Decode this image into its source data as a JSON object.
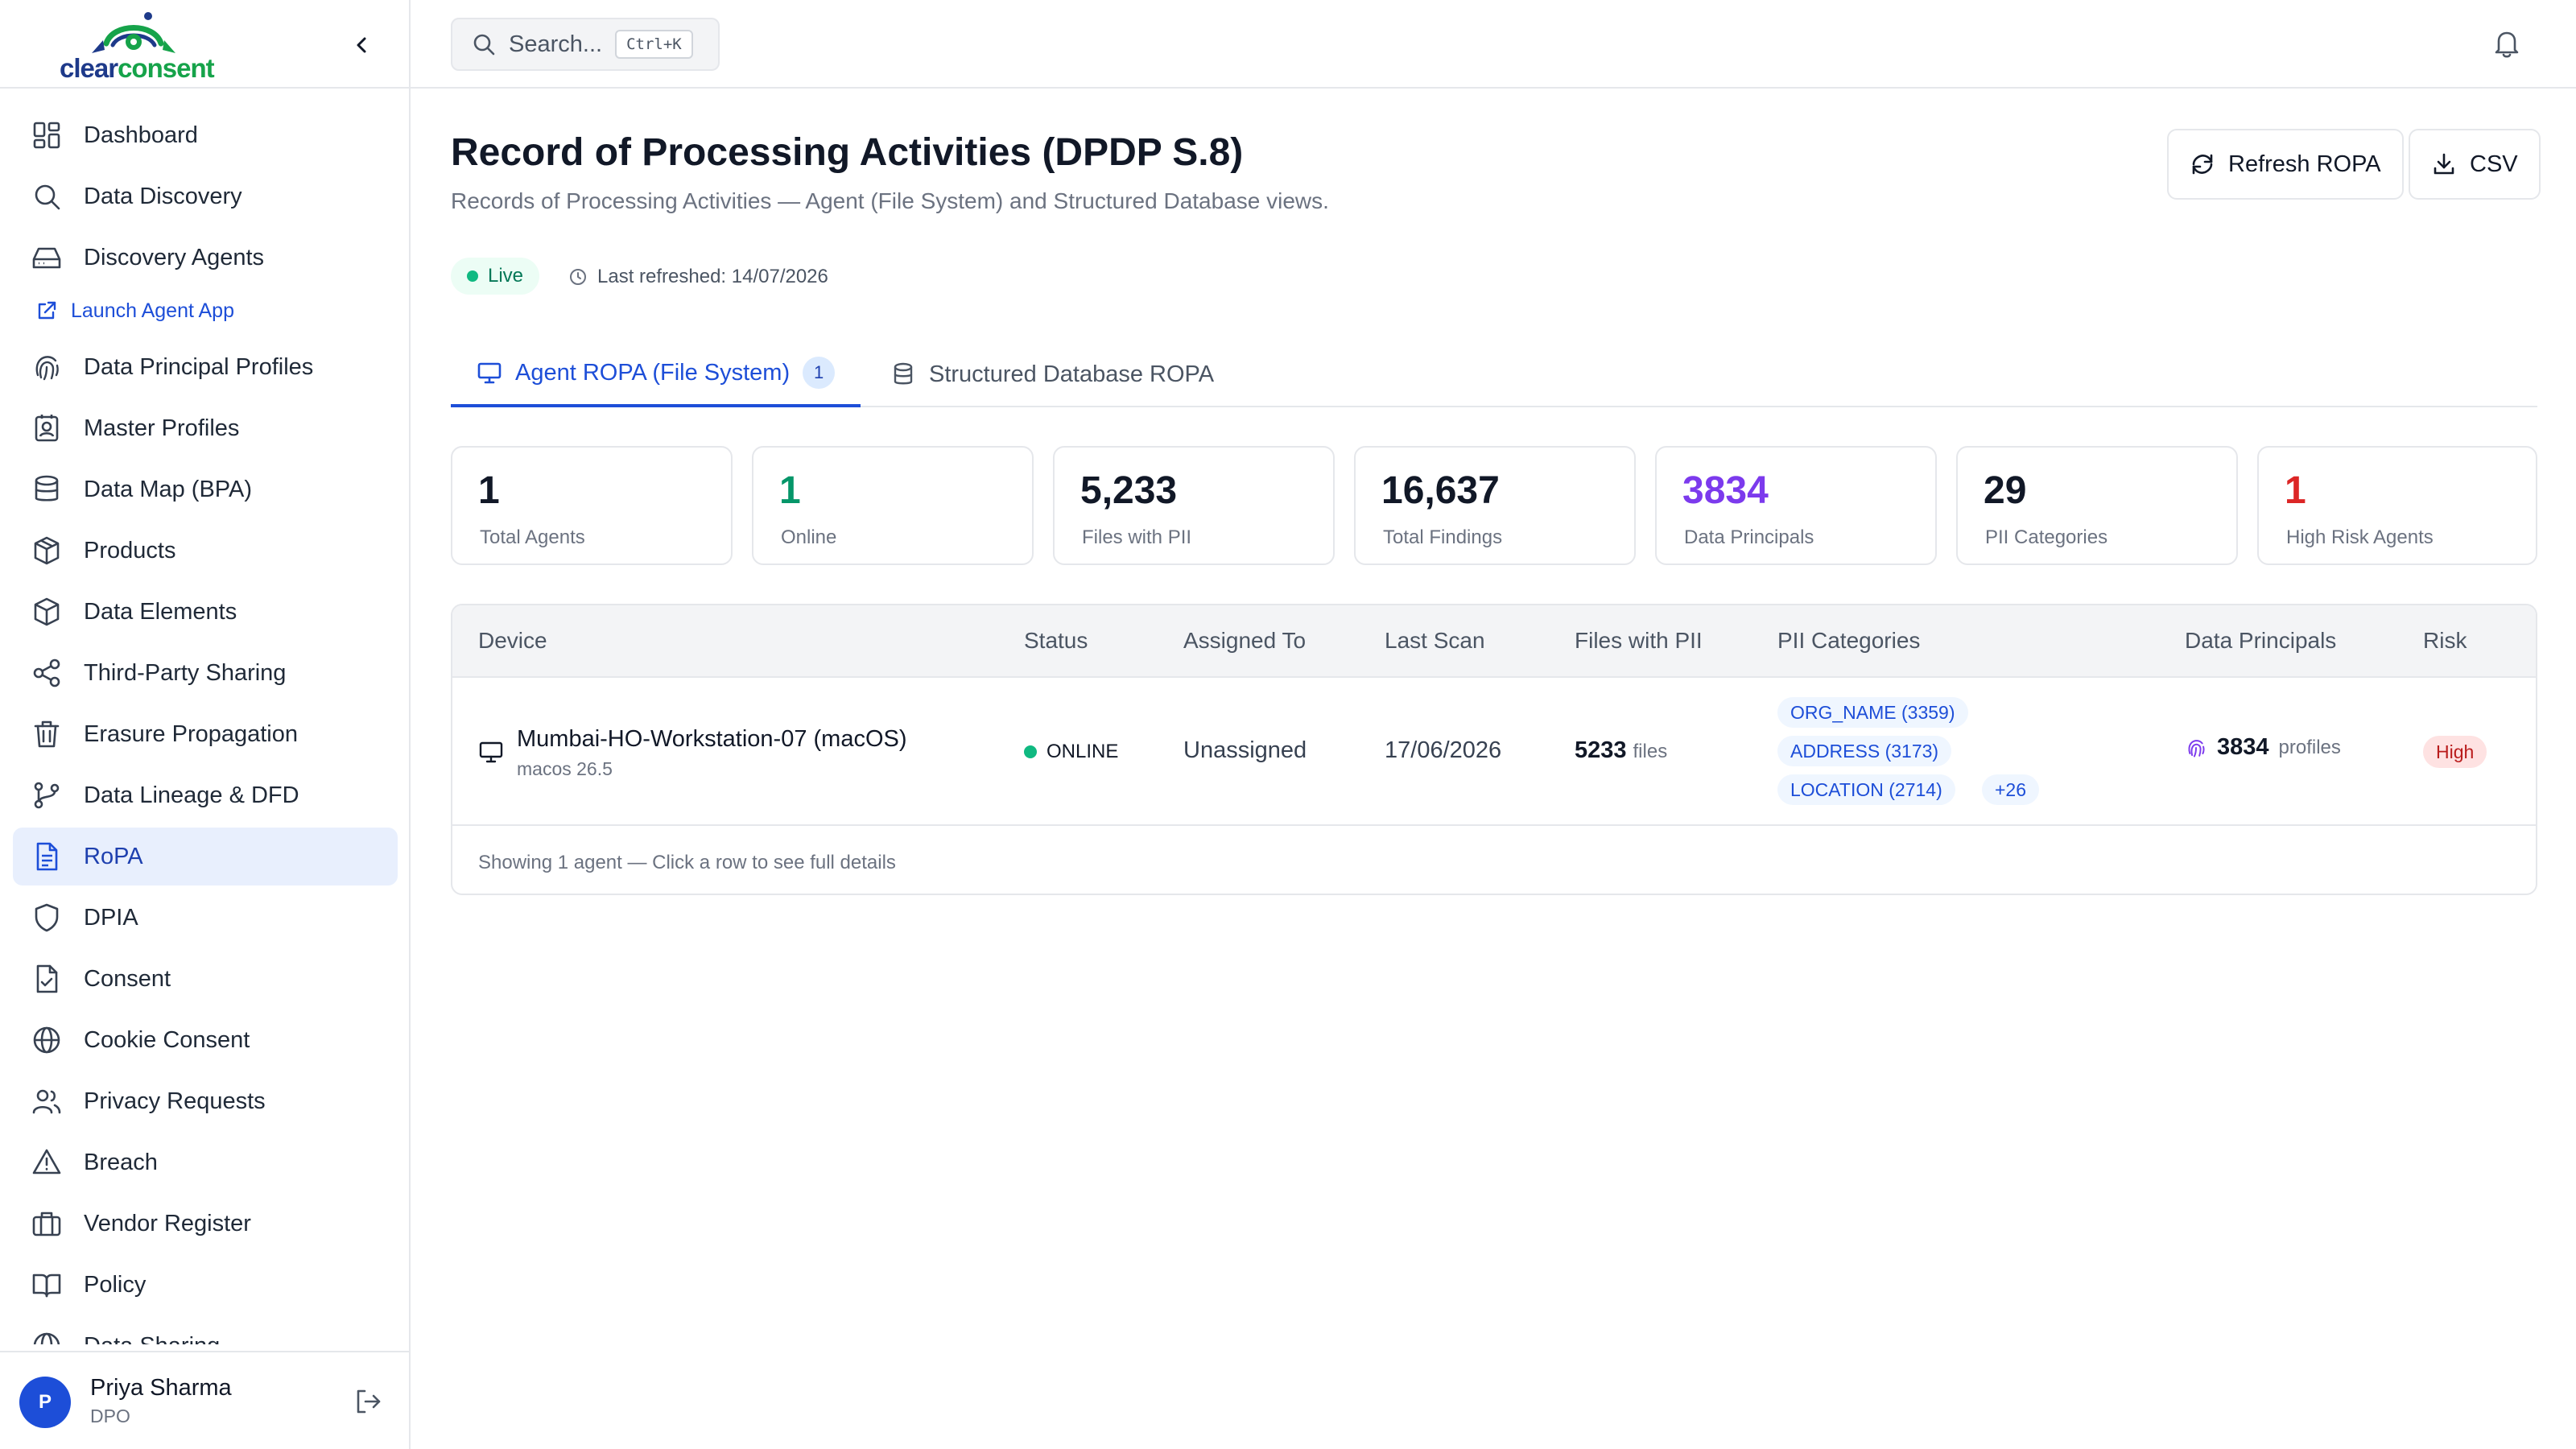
{
  "brand": {
    "logo_part1": "clear",
    "logo_part2": "consent",
    "colors": {
      "navy": "#1e3a8a",
      "green": "#16a34a"
    }
  },
  "sidebar": {
    "items": [
      {
        "label": "Dashboard",
        "icon": "dashboard-icon"
      },
      {
        "label": "Data Discovery",
        "icon": "search-icon"
      },
      {
        "label": "Discovery Agents",
        "icon": "hard-drive-icon"
      },
      {
        "label": "Launch Agent App",
        "icon": "external-link-icon"
      },
      {
        "label": "Data Principal Profiles",
        "icon": "fingerprint-icon"
      },
      {
        "label": "Master Profiles",
        "icon": "contact-card-icon"
      },
      {
        "label": "Data Map (BPA)",
        "icon": "database-icon"
      },
      {
        "label": "Products",
        "icon": "package-icon"
      },
      {
        "label": "Data Elements",
        "icon": "box-icon"
      },
      {
        "label": "Third-Party Sharing",
        "icon": "share-icon"
      },
      {
        "label": "Erasure Propagation",
        "icon": "trash-icon"
      },
      {
        "label": "Data Lineage & DFD",
        "icon": "git-branch-icon"
      },
      {
        "label": "RoPA",
        "icon": "file-text-icon",
        "active": true
      },
      {
        "label": "DPIA",
        "icon": "shield-icon"
      },
      {
        "label": "Consent",
        "icon": "file-check-icon"
      },
      {
        "label": "Cookie Consent",
        "icon": "globe-icon"
      },
      {
        "label": "Privacy Requests",
        "icon": "users-icon"
      },
      {
        "label": "Breach",
        "icon": "warning-icon"
      },
      {
        "label": "Vendor Register",
        "icon": "briefcase-icon"
      },
      {
        "label": "Policy",
        "icon": "book-icon"
      },
      {
        "label": "Data Sharing",
        "icon": "globe-icon"
      }
    ]
  },
  "user": {
    "initial": "P",
    "name": "Priya Sharma",
    "role": "DPO"
  },
  "topbar": {
    "search_placeholder": "Search...",
    "shortcut": "Ctrl+K"
  },
  "page": {
    "title": "Record of Processing Activities (DPDP S.8)",
    "subtitle": "Records of Processing Activities — Agent (File System) and Structured Database views.",
    "refresh_button": "Refresh ROPA",
    "csv_button": "CSV",
    "live_label": "Live",
    "last_refreshed": "Last refreshed: 14/07/2026"
  },
  "tabs": [
    {
      "label": "Agent ROPA (File System)",
      "count": "1",
      "active": true
    },
    {
      "label": "Structured Database ROPA"
    }
  ],
  "stats": [
    {
      "value": "1",
      "label": "Total Agents",
      "color": "#111827"
    },
    {
      "value": "1",
      "label": "Online",
      "color": "#059669"
    },
    {
      "value": "5,233",
      "label": "Files with PII",
      "color": "#111827"
    },
    {
      "value": "16,637",
      "label": "Total Findings",
      "color": "#111827"
    },
    {
      "value": "3834",
      "label": "Data Principals",
      "color": "#7c3aed"
    },
    {
      "value": "29",
      "label": "PII Categories",
      "color": "#111827"
    },
    {
      "value": "1",
      "label": "High Risk Agents",
      "color": "#dc2626"
    }
  ],
  "table": {
    "headers": [
      "Device",
      "Status",
      "Assigned To",
      "Last Scan",
      "Files with PII",
      "PII Categories",
      "Data Principals",
      "Risk"
    ],
    "rows": [
      {
        "device": "Mumbai-HO-Workstation-07 (macOS)",
        "os": "macos 26.5",
        "status": "ONLINE",
        "assigned_to": "Unassigned",
        "last_scan": "17/06/2026",
        "files_count": "5233",
        "files_unit": "files",
        "pii_categories": [
          "ORG_NAME (3359)",
          "ADDRESS (3173)",
          "LOCATION (2714)"
        ],
        "pii_more": "+26",
        "principals_count": "3834",
        "principals_unit": "profiles",
        "risk": "High"
      }
    ],
    "footer": "Showing 1 agent — Click a row to see full details"
  }
}
